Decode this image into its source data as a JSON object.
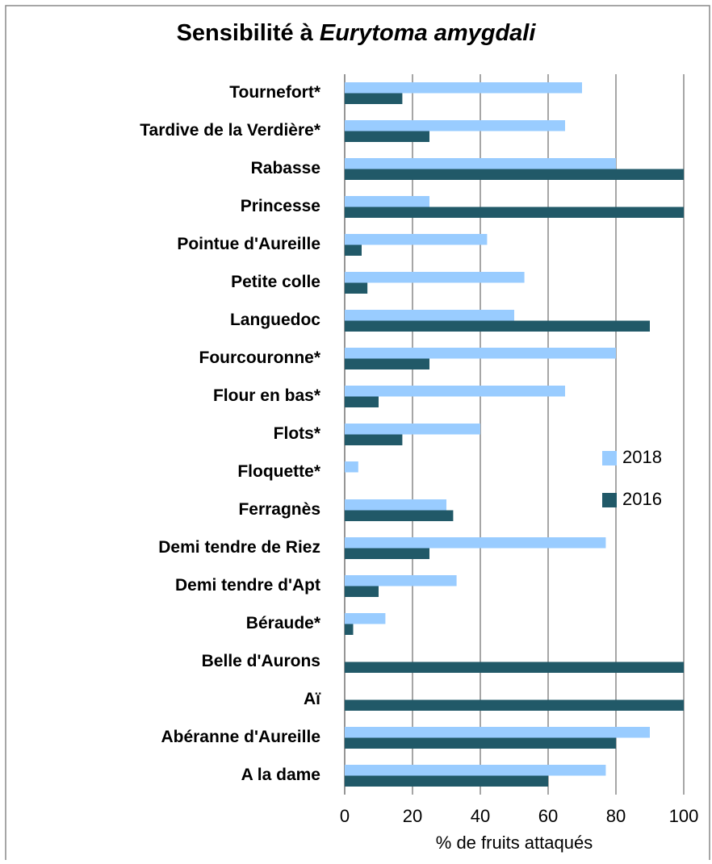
{
  "chart_data": {
    "type": "bar",
    "orientation": "horizontal",
    "title": [
      "Sensibilité à",
      "Eurytoma amygdali"
    ],
    "xlabel": "% de fruits attaqués",
    "categories": [
      "Tournefort*",
      "Tardive de la Verdière*",
      "Rabasse",
      "Princesse",
      "Pointue d'Aureille",
      "Petite colle",
      "Languedoc",
      "Fourcouronne*",
      "Flour en bas*",
      "Flots*",
      "Floquette*",
      "Ferragnès",
      "Demi tendre de Riez",
      "Demi tendre d'Apt",
      "Béraude*",
      "Belle d'Aurons",
      "Aï",
      "Abéranne d'Aureille",
      "A la dame"
    ],
    "series": [
      {
        "name": "2018",
        "color": "#99ccff",
        "values": [
          70,
          65,
          80,
          25,
          42,
          53,
          50,
          80,
          65,
          40,
          4,
          30,
          77,
          33,
          12,
          0,
          0,
          90,
          77
        ]
      },
      {
        "name": "2016",
        "color": "#215968",
        "values": [
          17,
          25,
          100,
          100,
          5,
          6.7,
          90,
          25,
          10,
          17,
          0,
          32,
          25,
          10,
          2.5,
          100,
          100,
          80,
          60
        ]
      }
    ],
    "xlim": [
      0,
      100
    ],
    "xticks": [
      0,
      20,
      40,
      60,
      80,
      100
    ],
    "grid": true,
    "legend": "right"
  }
}
